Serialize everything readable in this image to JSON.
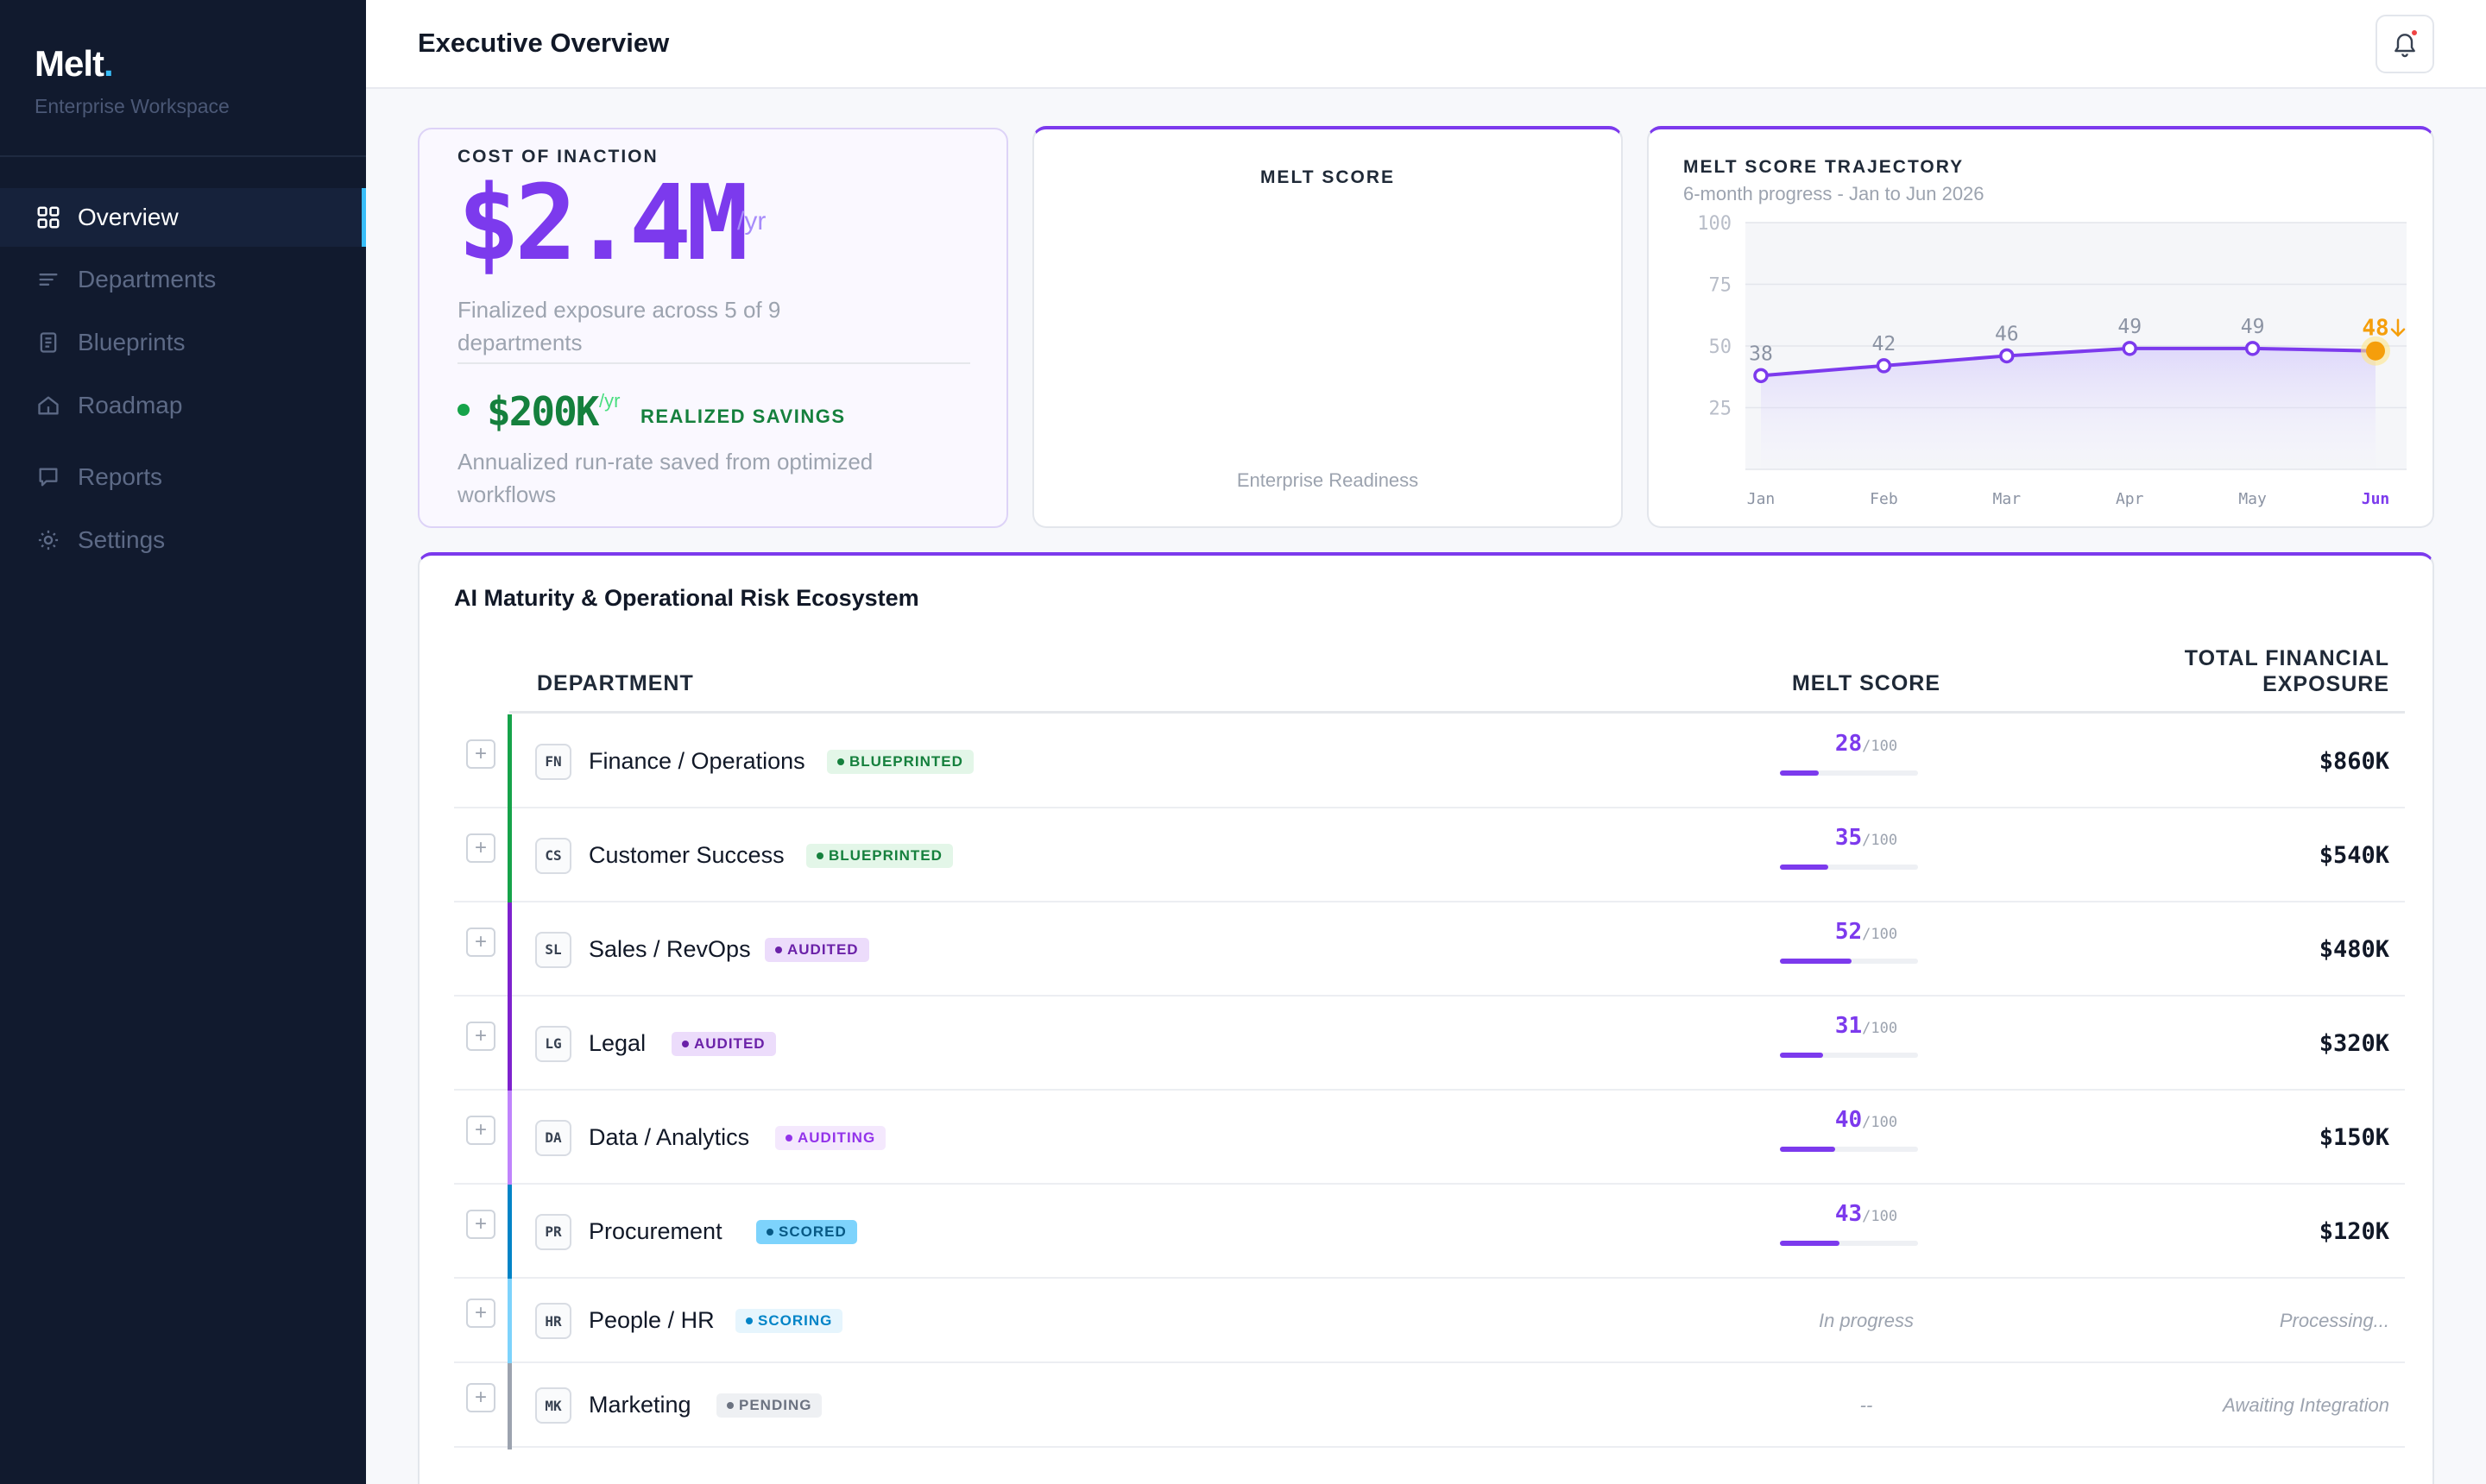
{
  "sidebar": {
    "logo": "Melt",
    "logo_dot": ".",
    "workspace": "Enterprise Workspace",
    "items": [
      {
        "label": "Overview",
        "icon": "grid-icon",
        "active": true
      },
      {
        "label": "Departments",
        "icon": "list-icon"
      },
      {
        "label": "Blueprints",
        "icon": "document-icon"
      },
      {
        "label": "Roadmap",
        "icon": "road-icon"
      },
      {
        "label": "Reports",
        "icon": "report-icon"
      },
      {
        "label": "Settings",
        "icon": "gear-icon"
      }
    ]
  },
  "header": {
    "title": "Executive Overview",
    "bell_icon": "bell-icon"
  },
  "cost": {
    "eyebrow": "COST OF INACTION",
    "value": "$2.4M",
    "unit": "/yr",
    "desc": "Finalized exposure across 5 of 9 departments",
    "savings_value": "$200K",
    "savings_unit": "/yr",
    "savings_label": "REALIZED SAVINGS",
    "savings_desc": "Annualized run-rate saved from optimized workflows"
  },
  "melt_score": {
    "eyebrow": "MELT SCORE",
    "subtitle": "Enterprise Readiness"
  },
  "trajectory": {
    "eyebrow": "MELT SCORE TRAJECTORY",
    "subtitle": "6-month progress - Jan to Jun 2026",
    "trend_icon": "arrow-down-icon"
  },
  "chart_data": {
    "type": "line",
    "title": "MELT SCORE TRAJECTORY",
    "subtitle": "6-month progress - Jan to Jun 2026",
    "categories": [
      "Jan",
      "Feb",
      "Mar",
      "Apr",
      "May",
      "Jun"
    ],
    "series": [
      {
        "values": [
          38,
          42,
          46,
          49,
          49,
          48
        ]
      }
    ],
    "yticks": [
      100,
      75,
      50,
      25
    ],
    "ylim": [
      0,
      100
    ],
    "grid": true,
    "colors": {
      "line": "#7c3aed",
      "highlight": "#f59e0b"
    }
  },
  "table": {
    "title": "AI Maturity & Operational Risk Ecosystem",
    "headers": {
      "department": "DEPARTMENT",
      "score": "MELT SCORE",
      "exposure_line1": "TOTAL FINANCIAL",
      "exposure_line2": "EXPOSURE"
    },
    "expand_symbol": "+",
    "score_denominator": "/100",
    "rows": [
      {
        "abbr": "FN",
        "name": "Finance / Operations",
        "status": "BLUEPRINTED",
        "score": "28",
        "score_value": 28,
        "exposure": "$860K"
      },
      {
        "abbr": "CS",
        "name": "Customer Success",
        "status": "BLUEPRINTED",
        "score": "35",
        "score_value": 35,
        "exposure": "$540K"
      },
      {
        "abbr": "SL",
        "name": "Sales / RevOps",
        "status": "AUDITED",
        "score": "52",
        "score_value": 52,
        "exposure": "$480K"
      },
      {
        "abbr": "LG",
        "name": "Legal",
        "status": "AUDITED",
        "score": "31",
        "score_value": 31,
        "exposure": "$320K"
      },
      {
        "abbr": "DA",
        "name": "Data / Analytics",
        "status": "AUDITING",
        "score": "40",
        "score_value": 40,
        "exposure": "$150K"
      },
      {
        "abbr": "PR",
        "name": "Procurement",
        "status": "SCORED",
        "score": "43",
        "score_value": 43,
        "exposure": "$120K"
      },
      {
        "abbr": "HR",
        "name": "People / HR",
        "status": "SCORING",
        "score_text": "In progress",
        "exposure_text": "Processing..."
      },
      {
        "abbr": "MK",
        "name": "Marketing",
        "status": "PENDING",
        "score_text": "--",
        "exposure_text": "Awaiting Integration"
      }
    ]
  },
  "status_colors": {
    "BLUEPRINTED": {
      "bg": "#e3f6e8",
      "fg": "#15803d",
      "bar": "#16a34a"
    },
    "AUDITED": {
      "bg": "#ecdcfb",
      "fg": "#6b21a8",
      "bar": "#7e22ce"
    },
    "AUDITING": {
      "bg": "#f4e8fd",
      "fg": "#9333ea",
      "bar": "#c084fc"
    },
    "SCORED": {
      "bg": "#7dd3fc",
      "fg": "#075985",
      "bar": "#0284c7"
    },
    "SCORING": {
      "bg": "#e6f5fd",
      "fg": "#0284c7",
      "bar": "#7dd3fc"
    },
    "PENDING": {
      "bg": "#eef0f3",
      "fg": "#6b7280",
      "bar": "#9ca3af"
    }
  }
}
